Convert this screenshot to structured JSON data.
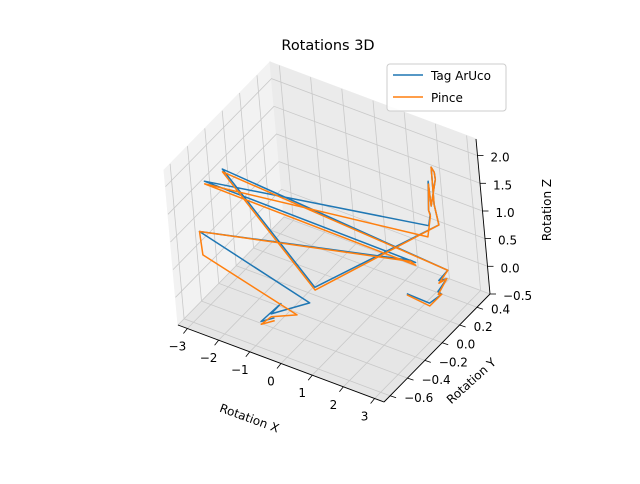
{
  "chart_data": {
    "type": "line",
    "projection": "3d",
    "title": "Rotations 3D",
    "xlabel": "Rotation X",
    "ylabel": "Rotation Y",
    "zlabel": "Rotation Z",
    "xlim": [
      -3.3,
      3.3
    ],
    "ylim": [
      -0.67,
      0.55
    ],
    "zlim": [
      -0.5,
      2.3
    ],
    "x_ticks": [
      "−3",
      "−2",
      "−1",
      "0",
      "1",
      "2",
      "3"
    ],
    "y_ticks": [
      "−0.6",
      "−0.4",
      "−0.2",
      "0.0",
      "0.2",
      "0.4"
    ],
    "z_ticks": [
      "−0.5",
      "0.0",
      "0.5",
      "1.0",
      "1.5",
      "2.0"
    ],
    "grid": true,
    "legend": {
      "position": "top-right",
      "entries": [
        "Tag ArUco",
        "Pince"
      ]
    },
    "series": [
      {
        "name": "Tag ArUco",
        "color": "#1f77b4",
        "points": [
          [
            2.9,
            -0.2,
            0.62
          ],
          [
            3.0,
            0.0,
            0.15
          ],
          [
            2.8,
            0.2,
            -0.05
          ],
          [
            3.0,
            0.1,
            0.2
          ],
          [
            2.7,
            0.3,
            0.05
          ],
          [
            2.9,
            0.15,
            0.3
          ],
          [
            2.6,
            0.35,
            0.1
          ],
          [
            -3.0,
            -0.15,
            1.55
          ],
          [
            0.5,
            -0.4,
            0.55
          ],
          [
            2.6,
            0.3,
            1.0
          ],
          [
            2.5,
            0.3,
            1.35
          ],
          [
            2.2,
            0.4,
            1.8
          ],
          [
            2.6,
            0.3,
            1.95
          ],
          [
            2.3,
            0.4,
            1.6
          ],
          [
            2.4,
            0.3,
            1.3
          ],
          [
            1.9,
            0.45,
            1.4
          ],
          [
            2.3,
            0.3,
            1.2
          ],
          [
            2.5,
            0.25,
            1.25
          ],
          [
            2.1,
            0.35,
            0.8
          ],
          [
            -3.0,
            -0.35,
            1.65
          ],
          [
            2.5,
            0.05,
            0.7
          ],
          [
            2.5,
            0.0,
            0.82
          ],
          [
            -3.0,
            -0.45,
            0.9
          ],
          [
            0.6,
            -0.5,
            0.45
          ],
          [
            -0.4,
            -0.6,
            0.2
          ],
          [
            -0.2,
            -0.55,
            0.35
          ],
          [
            -0.6,
            -0.65,
            0.1
          ],
          [
            -0.3,
            -0.6,
            0.15
          ]
        ]
      },
      {
        "name": "Pince",
        "color": "#ff7f0e",
        "points": [
          [
            2.9,
            -0.2,
            0.6
          ],
          [
            3.0,
            0.0,
            0.1
          ],
          [
            2.8,
            0.2,
            -0.05
          ],
          [
            3.0,
            0.1,
            0.15
          ],
          [
            2.7,
            0.3,
            0.05
          ],
          [
            2.9,
            0.15,
            0.25
          ],
          [
            2.6,
            0.35,
            0.1
          ],
          [
            -3.0,
            -0.15,
            1.5
          ],
          [
            0.5,
            -0.4,
            0.5
          ],
          [
            2.6,
            0.3,
            1.0
          ],
          [
            2.5,
            0.3,
            1.35
          ],
          [
            2.2,
            0.4,
            1.8
          ],
          [
            2.6,
            0.3,
            1.95
          ],
          [
            2.3,
            0.4,
            1.6
          ],
          [
            2.4,
            0.3,
            1.3
          ],
          [
            1.9,
            0.45,
            1.35
          ],
          [
            2.3,
            0.3,
            1.2
          ],
          [
            2.5,
            0.25,
            1.22
          ],
          [
            2.2,
            0.3,
            0.7
          ],
          [
            -3.0,
            -0.35,
            1.6
          ],
          [
            2.5,
            0.05,
            0.65
          ],
          [
            2.5,
            0.0,
            0.8
          ],
          [
            -3.0,
            -0.45,
            0.9
          ],
          [
            -2.8,
            -0.5,
            0.6
          ],
          [
            0.3,
            -0.55,
            0.25
          ],
          [
            -0.4,
            -0.6,
            0.15
          ],
          [
            -0.6,
            -0.65,
            0.05
          ],
          [
            -0.3,
            -0.6,
            0.1
          ]
        ]
      }
    ]
  }
}
